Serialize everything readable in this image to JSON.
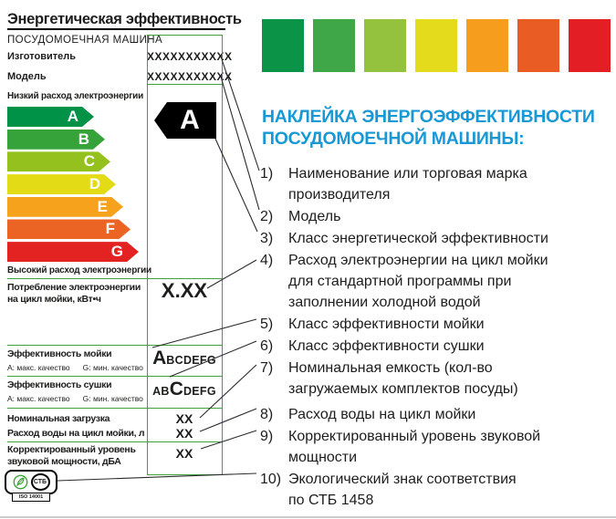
{
  "label": {
    "title": "Энергетическая эффективность",
    "subtitle": "ПОСУДОМОЕЧНАЯ МАШИНА",
    "manufacturer_label": "Изготовитель",
    "manufacturer_value": "XXXXXXXXXXX",
    "model_label": "Модель",
    "model_value": "XXXXXXXXXXX",
    "low_consumption": "Низкий расход электроэнергии",
    "high_consumption": "Высокий расход электроэнергии",
    "rating_arrow_letter": "A",
    "bars": [
      {
        "letter": "A",
        "color": "#009247",
        "width": 95
      },
      {
        "letter": "B",
        "color": "#35A339",
        "width": 107
      },
      {
        "letter": "C",
        "color": "#95C11F",
        "width": 113
      },
      {
        "letter": "D",
        "color": "#E3DB16",
        "width": 119
      },
      {
        "letter": "E",
        "color": "#F7A21C",
        "width": 127
      },
      {
        "letter": "F",
        "color": "#EC6423",
        "width": 135
      },
      {
        "letter": "G",
        "color": "#E32322",
        "width": 144
      }
    ],
    "rows": {
      "consumption": {
        "label": "Потребление электроэнергии\nна цикл мойки, кВт•ч",
        "value": "X.XX"
      },
      "wash": {
        "label": "Эффективность мойки",
        "note_a": "А: макс. качество",
        "note_g": "G: мин. качество",
        "value_pre": "",
        "value_big": "A",
        "value_post": "BCDEFG"
      },
      "dry": {
        "label": "Эффективность сушки",
        "note_a": "А: макс. качество",
        "note_g": "G: мин. качество",
        "value_pre": "AB",
        "value_big": "C",
        "value_post": "DEFG"
      },
      "load": {
        "label": "Номинальная загрузка",
        "value": "XX"
      },
      "water": {
        "label": "Расход воды на цикл мойки, л",
        "value": "XX"
      },
      "noise": {
        "label": "Корректированный уровень\nзвуковой мощности, дБА",
        "value": "XX"
      }
    },
    "eco": {
      "stb_text": "СТБ",
      "iso_text": "ISO 14001"
    }
  },
  "palette_squares": [
    "#0B9347",
    "#3FA748",
    "#94C23F",
    "#E5DB1D",
    "#F79D1E",
    "#E95D25",
    "#E31E25"
  ],
  "right": {
    "heading": "НАКЛЕЙКА ЭНЕРГОЭФФЕКТИВНОСТИ\nПОСУДОМОЕЧНОЙ МАШИНЫ:",
    "heading_color": "#1899D6",
    "items": [
      {
        "num": "1)",
        "text": "Наименование или торговая марка\nпроизводителя"
      },
      {
        "num": "2)",
        "text": "Модель"
      },
      {
        "num": "3)",
        "text": "Класс энергетической эффективности"
      },
      {
        "num": "4)",
        "text": "Расход электроэнергии на цикл мойки\nдля стандартной программы при\nзаполнении холодной водой"
      },
      {
        "num": "5)",
        "text": "Класс эффективности мойки"
      },
      {
        "num": "6)",
        "text": "Класс эффективности сушки"
      },
      {
        "num": "7)",
        "text": "Номинальная емкость (кол-во\nзагружаемых комплектов посуды)"
      },
      {
        "num": "8)",
        "text": "Расход воды на цикл мойки"
      },
      {
        "num": "9)",
        "text": "Корректированный уровень звуковой\nмощности"
      },
      {
        "num": "10)",
        "text": "Экологический знак соответствия\nпо СТБ 1458"
      }
    ]
  }
}
